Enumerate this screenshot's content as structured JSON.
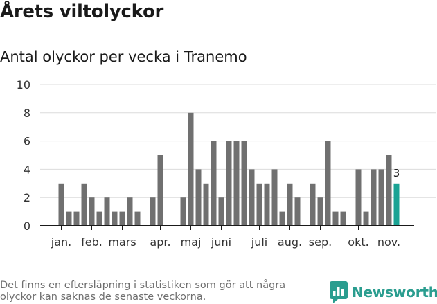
{
  "header": {
    "title": "Årets viltolyckor",
    "subtitle": "Antal olyckor per vecka i Tranemo"
  },
  "chart_data": {
    "type": "bar",
    "xlabel": "",
    "ylabel": "",
    "ylim": [
      0,
      10
    ],
    "yticks": [
      0,
      2,
      4,
      6,
      8,
      10
    ],
    "grid": true,
    "legend": "none",
    "month_labels": [
      "jan.",
      "feb.",
      "mars",
      "apr.",
      "maj",
      "juni",
      "juli",
      "aug.",
      "sep.",
      "okt.",
      "nov."
    ],
    "month_label_weeks": [
      1,
      5,
      9,
      14,
      18,
      22,
      27,
      31,
      35,
      40,
      44
    ],
    "weeks": [
      1,
      2,
      3,
      4,
      5,
      6,
      7,
      8,
      9,
      10,
      11,
      12,
      13,
      14,
      15,
      16,
      17,
      18,
      19,
      20,
      21,
      22,
      23,
      24,
      25,
      26,
      27,
      28,
      29,
      30,
      31,
      32,
      33,
      34,
      35,
      36,
      37,
      38,
      39,
      40,
      41,
      42,
      43,
      44,
      45
    ],
    "values": [
      3,
      1,
      1,
      3,
      2,
      1,
      2,
      1,
      1,
      2,
      1,
      0,
      2,
      5,
      0,
      0,
      2,
      8,
      4,
      3,
      6,
      2,
      6,
      6,
      6,
      4,
      3,
      3,
      4,
      1,
      3,
      2,
      0,
      3,
      2,
      6,
      1,
      1,
      0,
      4,
      1,
      4,
      4,
      5,
      3
    ],
    "highlight_last_label": "3",
    "bar_color": "#707070",
    "highlight_color": "#1aa394",
    "grid_color": "#dcdcdc",
    "axis_color": "#1a1a1a"
  },
  "footer": {
    "note": "Det finns en eftersläpning i statistiken som gör att några olyckor kan saknas de senaste veckorna.",
    "brand": "Newsworthy",
    "brand_color": "#2a9d8f"
  }
}
